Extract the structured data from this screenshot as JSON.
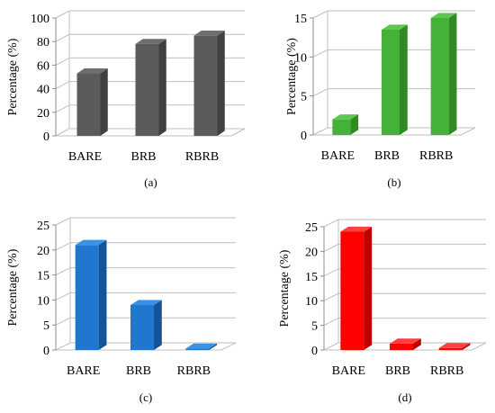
{
  "chart_data": [
    {
      "type": "bar",
      "panel_label": "(a)",
      "ylabel": "Percentage (%)",
      "categories": [
        "BARE",
        "BRB",
        "RBRB"
      ],
      "values": [
        53,
        78,
        85
      ],
      "ylim": [
        0,
        100
      ],
      "yticks": [
        "0",
        "20",
        "40",
        "60",
        "80",
        "100"
      ],
      "grid": true,
      "colors": {
        "front": "#5b5b5b",
        "side": "#404040",
        "top": "#6e6e6e"
      }
    },
    {
      "type": "bar",
      "panel_label": "(b)",
      "ylabel": "Percentage (%)",
      "categories": [
        "BARE",
        "BRB",
        "RBRB"
      ],
      "values": [
        2,
        13.5,
        15
      ],
      "ylim": [
        0,
        15
      ],
      "yticks": [
        "0",
        "5",
        "10",
        "15"
      ],
      "grid": true,
      "colors": {
        "front": "#44b238",
        "side": "#2f8a25",
        "top": "#5cc84e"
      }
    },
    {
      "type": "bar",
      "panel_label": "(c)",
      "ylabel": "Percentage (%)",
      "categories": [
        "BARE",
        "BRB",
        "RBRB"
      ],
      "values": [
        21,
        9,
        0.3
      ],
      "ylim": [
        0,
        25
      ],
      "yticks": [
        "0",
        "5",
        "10",
        "15",
        "20",
        "25"
      ],
      "grid": true,
      "colors": {
        "front": "#1f77d0",
        "side": "#14539a",
        "top": "#3a92e6"
      }
    },
    {
      "type": "bar",
      "panel_label": "(d)",
      "ylabel": "Percentage (%)",
      "categories": [
        "BARE",
        "BRB",
        "RBRB"
      ],
      "values": [
        24,
        1.3,
        0.4
      ],
      "ylim": [
        0,
        25
      ],
      "yticks": [
        "0",
        "5",
        "10",
        "15",
        "20",
        "25"
      ],
      "grid": true,
      "colors": {
        "front": "#ff0000",
        "side": "#c00000",
        "top": "#ff4040"
      }
    }
  ]
}
